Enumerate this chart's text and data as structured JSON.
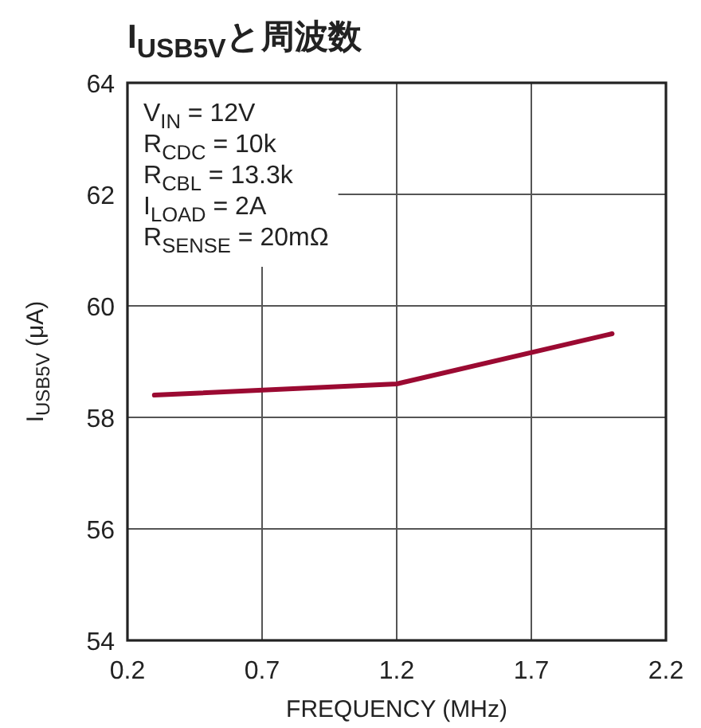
{
  "chart_data": {
    "type": "line",
    "title": "I$_{USB5V}$と周波数",
    "xlabel": "FREQUENCY (MHz)",
    "ylabel": "I$_{USB5V}$ (μA)",
    "annotations": [
      "V$_{IN}$ = 12V",
      "R$_{CDC}$ = 10k",
      "R$_{CBL}$ = 13.3k",
      "I$_{LOAD}$ = 2A",
      "R$_{SENSE}$ = 20mΩ"
    ],
    "x": [
      0.3,
      1.2,
      2.0
    ],
    "series": [
      {
        "color": "#9b0a32",
        "values": [
          58.4,
          58.6,
          59.5
        ]
      }
    ],
    "xlim": [
      0.2,
      2.2
    ],
    "xticks": [
      0.2,
      0.7,
      1.2,
      1.7,
      2.2
    ],
    "ylim": [
      54,
      64
    ],
    "yticks": [
      54,
      56,
      58,
      60,
      62,
      64
    ],
    "grid": true
  }
}
